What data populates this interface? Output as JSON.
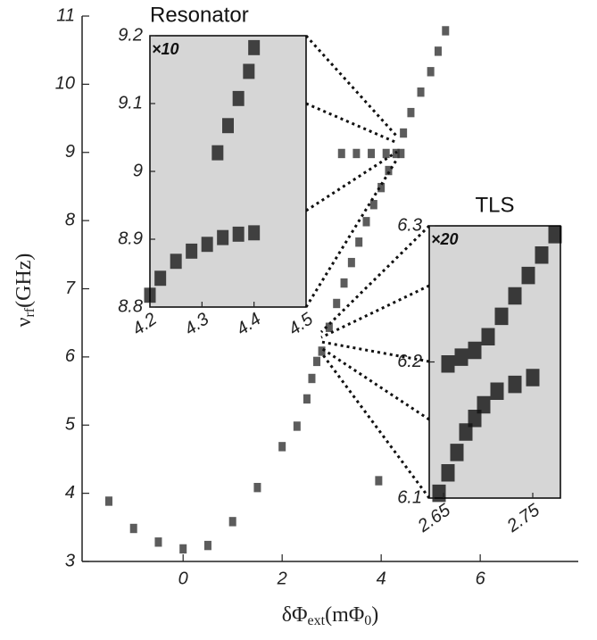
{
  "chart_data": [
    {
      "type": "scatter",
      "xlabel": {
        "main": "δΦ",
        "sub": "ext",
        "unit": "(mΦ",
        "unit_sub": "0",
        "close": ")"
      },
      "ylabel": {
        "main": "ν",
        "sub": "rf",
        "unit": "(GHz)"
      },
      "x": [
        -1.5,
        -1.0,
        -0.5,
        0.0,
        0.5,
        1.0,
        1.5,
        2.0,
        2.3,
        2.5,
        2.6,
        2.7,
        2.8,
        2.95,
        3.1,
        3.25,
        3.4,
        3.55,
        3.7,
        3.85,
        4.0,
        4.15,
        4.3,
        4.45,
        4.6,
        4.8,
        5.0,
        5.15,
        5.3,
        3.2,
        3.5,
        3.8,
        4.1,
        4.4,
        3.95
      ],
      "values": [
        3.9,
        3.5,
        3.3,
        3.2,
        3.25,
        3.6,
        4.1,
        4.7,
        5.0,
        5.4,
        5.7,
        5.95,
        6.1,
        6.45,
        6.8,
        7.1,
        7.4,
        7.7,
        8.0,
        8.25,
        8.5,
        8.75,
        9.0,
        9.3,
        9.6,
        9.9,
        10.2,
        10.5,
        10.8,
        9.0,
        9.0,
        9.0,
        9.0,
        9.0,
        4.2
      ],
      "color": "#333333",
      "xlim": [
        -2.04,
        7.98
      ],
      "ylim": [
        3,
        11
      ],
      "xticks": [
        0,
        2,
        4,
        6
      ],
      "yticks": [
        3,
        4,
        5,
        6,
        7,
        8,
        9,
        10,
        11
      ],
      "frame": false
    },
    {
      "type": "scatter",
      "title": "Resonator",
      "annotation": "×10",
      "x": [
        4.2,
        4.22,
        4.25,
        4.28,
        4.31,
        4.34,
        4.37,
        4.4,
        4.33,
        4.35,
        4.37,
        4.39,
        4.4
      ],
      "values": [
        8.82,
        8.845,
        8.87,
        8.885,
        8.895,
        8.905,
        8.91,
        8.912,
        9.03,
        9.07,
        9.11,
        9.15,
        9.185
      ],
      "color": "#1a1a1a",
      "xlim": [
        4.2,
        4.5
      ],
      "ylim": [
        8.8,
        9.2
      ],
      "xticks": [
        4.2,
        4.3,
        4.4,
        4.5
      ],
      "yticks": [
        8.8,
        8.9,
        9,
        9.1,
        9.2
      ],
      "frame": true
    },
    {
      "type": "scatter",
      "title": "TLS",
      "annotation": "×20",
      "x": [
        2.645,
        2.655,
        2.665,
        2.675,
        2.685,
        2.695,
        2.71,
        2.73,
        2.75,
        2.655,
        2.67,
        2.685,
        2.7,
        2.715,
        2.73,
        2.745,
        2.76,
        2.775
      ],
      "values": [
        6.105,
        6.12,
        6.135,
        6.15,
        6.16,
        6.17,
        6.18,
        6.185,
        6.19,
        6.2,
        6.205,
        6.21,
        6.22,
        6.235,
        6.25,
        6.265,
        6.28,
        6.295
      ],
      "color": "#111111",
      "xlim": [
        2.634,
        2.781
      ],
      "ylim": [
        6.1,
        6.3
      ],
      "xticks": [
        2.65,
        2.75
      ],
      "yticks": [
        6.1,
        6.2,
        6.3
      ],
      "frame": true
    }
  ]
}
